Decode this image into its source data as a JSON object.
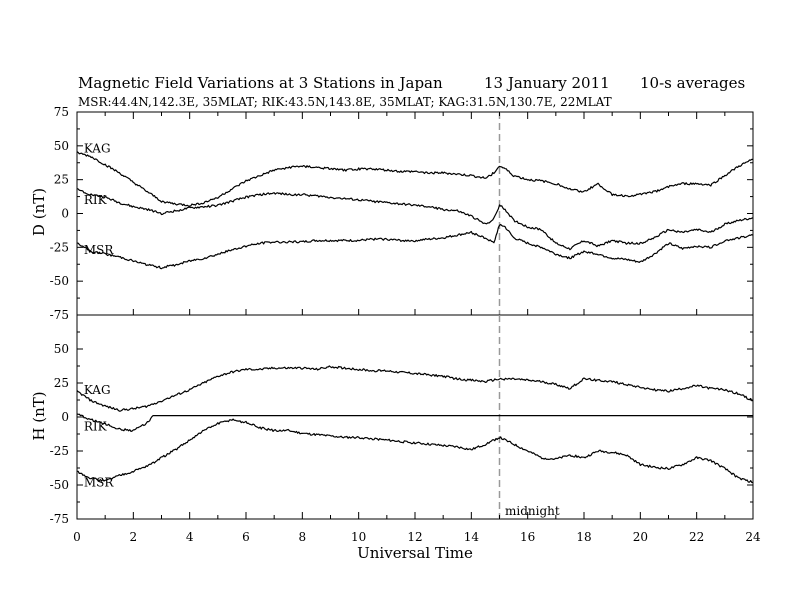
{
  "header": {
    "title": "Magnetic Field Variations at 3 Stations in Japan",
    "date": "13 January 2011",
    "averaging": "10-s averages",
    "stations": "MSR:44.4N,142.3E, 35MLAT;  RIK:43.5N,143.8E, 35MLAT;  KAG:31.5N,130.7E, 22MLAT"
  },
  "colors": {
    "line": "#000000",
    "midnight_marker": "#999999"
  },
  "chart_data": [
    {
      "type": "line",
      "panel": "D",
      "ylabel": "D (nT)",
      "ylim": [
        -75,
        75
      ],
      "yticks": [
        75,
        50,
        25,
        0,
        -25,
        -50,
        -75
      ],
      "xlim": [
        0,
        24
      ],
      "series": [
        {
          "name": "KAG",
          "x": [
            0,
            0.5,
            1,
            1.5,
            2,
            2.5,
            3,
            3.5,
            4,
            4.5,
            5,
            5.5,
            6,
            6.5,
            7,
            7.5,
            8,
            8.5,
            9,
            9.5,
            10,
            10.5,
            11,
            11.5,
            12,
            12.5,
            13,
            13.5,
            14,
            14.5,
            14.8,
            15,
            15.2,
            15.5,
            16,
            16.5,
            17,
            17.5,
            18,
            18.5,
            19,
            19.5,
            20,
            20.5,
            21,
            21.5,
            22,
            22.5,
            23,
            23.5,
            24
          ],
          "y": [
            45,
            42,
            36,
            30,
            23,
            16,
            9,
            7,
            6,
            8,
            12,
            18,
            24,
            28,
            32,
            34,
            35,
            34,
            33,
            32,
            33,
            33,
            32,
            31,
            31,
            30,
            30,
            29,
            28,
            26,
            30,
            35,
            33,
            28,
            25,
            24,
            22,
            18,
            16,
            22,
            14,
            13,
            14,
            16,
            20,
            22,
            22,
            21,
            28,
            35,
            40
          ]
        },
        {
          "name": "RIK",
          "x": [
            0,
            0.5,
            1,
            1.5,
            2,
            2.5,
            3,
            3.5,
            4,
            4.5,
            5,
            5.5,
            6,
            6.5,
            7,
            7.5,
            8,
            8.5,
            9,
            9.5,
            10,
            10.5,
            11,
            11.5,
            12,
            12.5,
            13,
            13.5,
            14,
            14.5,
            14.8,
            15,
            15.2,
            15.5,
            16,
            16.5,
            17,
            17.5,
            18,
            18.5,
            19,
            19.5,
            20,
            20.5,
            21,
            21.5,
            22,
            22.5,
            23,
            23.5,
            24
          ],
          "y": [
            18,
            14,
            12,
            8,
            5,
            3,
            0,
            2,
            4,
            5,
            6,
            9,
            12,
            14,
            15,
            14,
            14,
            13,
            12,
            11,
            10,
            9,
            8,
            7,
            6,
            5,
            3,
            2,
            -2,
            -8,
            -4,
            6,
            3,
            -5,
            -10,
            -12,
            -22,
            -26,
            -20,
            -24,
            -20,
            -22,
            -22,
            -18,
            -12,
            -14,
            -12,
            -14,
            -8,
            -5,
            -3
          ]
        },
        {
          "name": "MSR",
          "x": [
            0,
            0.5,
            1,
            1.5,
            2,
            2.5,
            3,
            3.5,
            4,
            4.5,
            5,
            5.5,
            6,
            6.5,
            7,
            7.5,
            8,
            8.5,
            9,
            9.5,
            10,
            10.5,
            11,
            11.5,
            12,
            12.5,
            13,
            13.5,
            14,
            14.5,
            14.8,
            15,
            15.2,
            15.5,
            16,
            16.5,
            17,
            17.5,
            18,
            18.5,
            19,
            19.5,
            20,
            20.5,
            21,
            21.5,
            22,
            22.5,
            23,
            23.5,
            24
          ],
          "y": [
            -22,
            -28,
            -30,
            -32,
            -35,
            -38,
            -40,
            -38,
            -35,
            -33,
            -30,
            -27,
            -24,
            -22,
            -21,
            -21,
            -21,
            -20,
            -20,
            -20,
            -20,
            -19,
            -19,
            -20,
            -20,
            -19,
            -18,
            -16,
            -14,
            -18,
            -22,
            -8,
            -10,
            -18,
            -22,
            -25,
            -30,
            -33,
            -28,
            -30,
            -33,
            -34,
            -36,
            -30,
            -22,
            -26,
            -24,
            -25,
            -20,
            -18,
            -16
          ]
        }
      ],
      "labels": [
        {
          "text": "KAG",
          "x": 0.1,
          "y": 48
        },
        {
          "text": "RIK",
          "x": 0.1,
          "y": 10
        },
        {
          "text": "MSR",
          "x": 0.1,
          "y": -27
        }
      ]
    },
    {
      "type": "line",
      "panel": "H",
      "ylabel": "H (nT)",
      "ylim": [
        -75,
        75
      ],
      "yticks": [
        50,
        25,
        0,
        -25,
        -50,
        -75
      ],
      "xlim": [
        0,
        24
      ],
      "series": [
        {
          "name": "KAG",
          "x": [
            0,
            0.5,
            1,
            1.5,
            2,
            2.5,
            3,
            3.5,
            4,
            4.5,
            5,
            5.5,
            6,
            6.5,
            7,
            7.5,
            8,
            8.5,
            9,
            9.5,
            10,
            10.5,
            11,
            11.5,
            12,
            12.5,
            13,
            13.5,
            14,
            14.5,
            15,
            15.5,
            16,
            16.5,
            17,
            17.5,
            18,
            18.5,
            19,
            19.5,
            20,
            20.5,
            21,
            21.5,
            22,
            22.5,
            23,
            23.5,
            24
          ],
          "y": [
            19,
            12,
            8,
            5,
            6,
            8,
            12,
            16,
            20,
            25,
            30,
            33,
            35,
            35,
            36,
            36,
            36,
            35,
            37,
            36,
            35,
            34,
            34,
            33,
            32,
            31,
            30,
            28,
            27,
            26,
            28,
            28,
            27,
            26,
            24,
            21,
            28,
            27,
            26,
            24,
            22,
            20,
            19,
            21,
            23,
            21,
            20,
            17,
            12
          ]
        },
        {
          "name": "RIK",
          "x": [
            0,
            0.5,
            1,
            1.5,
            2,
            2.5,
            2.7,
            3,
            4,
            6,
            8,
            10,
            12,
            14,
            16,
            18,
            20,
            22,
            24
          ],
          "y": [
            2,
            -2,
            -5,
            -9,
            -10,
            -4,
            1,
            1,
            1,
            1,
            1,
            1,
            1,
            1,
            1,
            1,
            1,
            1,
            1
          ]
        },
        {
          "name": "MSR",
          "x": [
            0,
            0.5,
            1,
            1.5,
            2,
            2.5,
            3,
            3.5,
            4,
            4.5,
            5,
            5.5,
            6,
            6.5,
            7,
            7.5,
            8,
            8.5,
            9,
            9.5,
            10,
            10.5,
            11,
            11.5,
            12,
            12.5,
            13,
            13.5,
            14,
            14.5,
            15,
            15.5,
            16,
            16.5,
            17,
            17.5,
            18,
            18.5,
            19,
            19.5,
            20,
            20.5,
            21,
            21.5,
            22,
            22.5,
            23,
            23.5,
            24
          ],
          "y": [
            -40,
            -45,
            -47,
            -43,
            -40,
            -36,
            -30,
            -24,
            -17,
            -10,
            -5,
            -2,
            -4,
            -8,
            -10,
            -10,
            -12,
            -13,
            -14,
            -15,
            -15,
            -16,
            -17,
            -18,
            -19,
            -20,
            -21,
            -22,
            -24,
            -20,
            -15,
            -20,
            -25,
            -30,
            -31,
            -28,
            -30,
            -25,
            -26,
            -28,
            -35,
            -37,
            -38,
            -35,
            -30,
            -32,
            -38,
            -45,
            -48
          ]
        }
      ],
      "labels": [
        {
          "text": "KAG",
          "x": 0.1,
          "y": 20
        },
        {
          "text": "RIK",
          "x": 0.1,
          "y": -7
        },
        {
          "text": "MSR",
          "x": 0.1,
          "y": -48
        }
      ]
    }
  ],
  "xaxis": {
    "label": "Universal Time",
    "ticks": [
      0,
      2,
      4,
      6,
      8,
      10,
      12,
      14,
      16,
      18,
      20,
      22,
      24
    ]
  },
  "annotation": {
    "text": "midnight",
    "x": 15
  }
}
